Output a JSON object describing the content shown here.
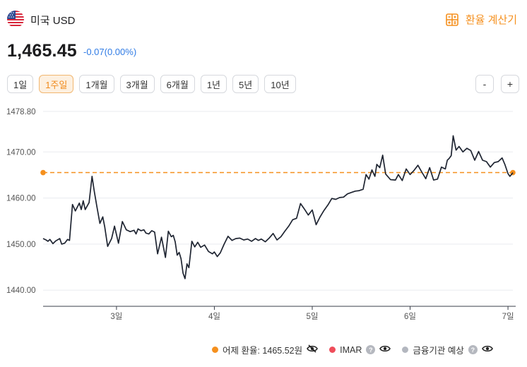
{
  "header": {
    "title": "미국 USD",
    "calculator_label": "환율 계산기"
  },
  "quote": {
    "rate": "1,465.45",
    "change": "-0.07(0.00%)"
  },
  "periods": [
    "1일",
    "1주일",
    "1개월",
    "3개월",
    "6개월",
    "1년",
    "5년",
    "10년"
  ],
  "active_period": "1주일",
  "zoom": {
    "minus": "-",
    "plus": "+"
  },
  "colors": {
    "accent": "#f5901e",
    "line": "#1f2532",
    "change": "#2f7be5",
    "imar": "#ef4d5a",
    "forecast": "#b3b7bf"
  },
  "chart_data": {
    "type": "line",
    "ylim": [
      1436.5,
      1480
    ],
    "xlim": [
      2.25,
      7.05
    ],
    "y_ticks": [
      "1478.80",
      "1470.00",
      "1460.00",
      "1450.00",
      "1440.00"
    ],
    "x_ticks": [
      "3일",
      "4일",
      "5일",
      "6일",
      "7일"
    ],
    "reference_line": 1465.52,
    "series": [
      {
        "x": [
          2.25,
          2.28,
          2.3,
          2.32,
          2.35,
          2.38,
          2.42,
          2.44,
          2.47,
          2.5,
          2.52,
          2.55,
          2.58,
          2.62,
          2.64,
          2.66,
          2.68,
          2.72,
          2.75,
          2.77,
          2.78,
          2.8,
          2.83,
          2.86,
          2.88,
          2.91,
          2.95,
          2.98,
          3.02,
          3.06,
          3.1,
          3.14,
          3.18,
          3.2,
          3.22,
          3.25,
          3.28,
          3.3,
          3.33,
          3.36,
          3.39,
          3.42,
          3.46,
          3.5,
          3.53,
          3.56,
          3.58,
          3.6,
          3.62,
          3.64,
          3.66,
          3.68,
          3.7,
          3.72,
          3.74,
          3.77,
          3.8,
          3.83,
          3.86,
          3.9,
          3.94,
          3.98,
          4.0,
          4.03,
          4.06,
          4.1,
          4.14,
          4.18,
          4.22,
          4.26,
          4.3,
          4.34,
          4.38,
          4.42,
          4.45,
          4.48,
          4.52,
          4.56,
          4.6,
          4.64,
          4.68,
          4.72,
          4.76,
          4.8,
          4.84,
          4.88,
          4.92,
          4.96,
          5.0,
          5.04,
          5.08,
          5.12,
          5.16,
          5.2,
          5.24,
          5.28,
          5.32,
          5.36,
          5.4,
          5.44,
          5.48,
          5.52,
          5.55,
          5.58,
          5.61,
          5.64,
          5.66,
          5.69,
          5.72,
          5.75,
          5.8,
          5.85,
          5.88,
          5.92,
          5.96,
          6.0,
          6.04,
          6.08,
          6.12,
          6.16,
          6.2,
          6.24,
          6.28,
          6.32,
          6.36,
          6.38,
          6.4,
          6.42,
          6.44,
          6.47,
          6.5,
          6.54,
          6.58,
          6.62,
          6.66,
          6.7,
          6.74,
          6.78,
          6.82,
          6.86,
          6.9,
          6.94,
          6.97,
          7.0,
          7.02,
          7.05
        ],
        "y": [
          1451.2,
          1450.9,
          1450.6,
          1451.0,
          1450.1,
          1450.7,
          1451.2,
          1450.0,
          1450.2,
          1451.0,
          1450.8,
          1458.6,
          1457.2,
          1458.9,
          1457.5,
          1459.4,
          1457.5,
          1459.0,
          1464.7,
          1461.9,
          1460.6,
          1458.1,
          1454.5,
          1455.9,
          1453.7,
          1449.5,
          1451.2,
          1453.9,
          1450.2,
          1454.9,
          1453.1,
          1452.7,
          1453.0,
          1452.2,
          1453.3,
          1452.9,
          1453.1,
          1452.4,
          1452.2,
          1452.9,
          1452.6,
          1447.9,
          1451.5,
          1447.1,
          1452.8,
          1451.6,
          1451.9,
          1450.5,
          1447.6,
          1448.2,
          1446.8,
          1443.7,
          1442.5,
          1445.7,
          1444.9,
          1450.6,
          1449.4,
          1450.4,
          1449.3,
          1449.8,
          1448.4,
          1447.9,
          1448.3,
          1447.3,
          1448.1,
          1450.0,
          1451.7,
          1450.8,
          1451.2,
          1451.3,
          1450.9,
          1451.1,
          1450.6,
          1451.2,
          1450.8,
          1451.1,
          1450.5,
          1451.3,
          1452.3,
          1450.9,
          1451.6,
          1452.8,
          1453.9,
          1455.3,
          1455.6,
          1458.8,
          1457.6,
          1456.3,
          1457.4,
          1454.2,
          1455.9,
          1457.3,
          1458.5,
          1459.9,
          1459.7,
          1460.1,
          1460.2,
          1460.9,
          1461.2,
          1461.5,
          1461.6,
          1461.9,
          1465.1,
          1464.1,
          1466.1,
          1464.7,
          1467.3,
          1466.6,
          1469.3,
          1465.2,
          1464.0,
          1463.9,
          1465.1,
          1463.8,
          1466.3,
          1465.1,
          1466.0,
          1467.1,
          1465.6,
          1464.2,
          1466.6,
          1463.9,
          1464.1,
          1466.7,
          1466.3,
          1468.2,
          1468.6,
          1469.2,
          1473.5,
          1470.4,
          1471.2,
          1470.0,
          1470.8,
          1470.3,
          1468.2,
          1470.1,
          1468.2,
          1467.9,
          1466.7,
          1467.7,
          1467.9,
          1468.7,
          1467.2,
          1465.3,
          1464.7,
          1465.5
        ]
      }
    ]
  },
  "legend": {
    "yesterday": "어제 환율: 1465.52원",
    "imar": "IMAR",
    "forecast": "금융기관 예상",
    "help_glyph": "?"
  }
}
